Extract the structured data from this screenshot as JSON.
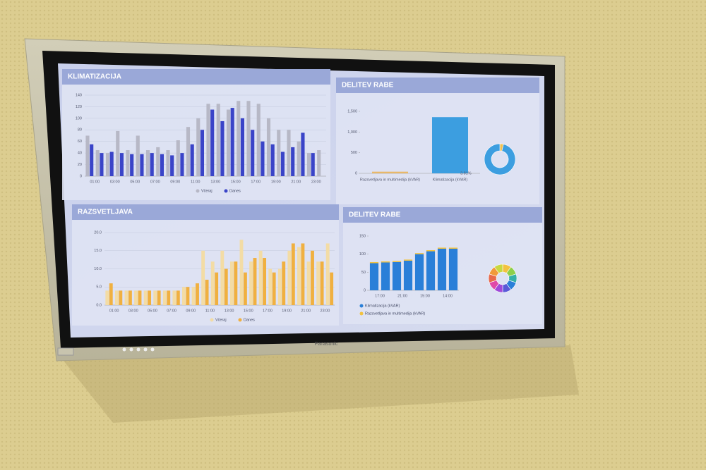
{
  "brand": "Panasonic",
  "chart_data": [
    {
      "type": "bar",
      "title": "KLIMATIZACIJA",
      "categories": [
        "01:00",
        null,
        "03:00",
        null,
        "05:00",
        null,
        "07:00",
        null,
        "09:00",
        null,
        "11:00",
        null,
        "13:00",
        null,
        "15:00",
        null,
        "17:00",
        null,
        "19:00",
        null,
        "21:00",
        null,
        "23:00",
        null
      ],
      "series": [
        {
          "name": "Včeraj",
          "color": "#b7b8c6",
          "values": [
            70,
            45,
            40,
            78,
            45,
            70,
            45,
            50,
            45,
            62,
            85,
            100,
            125,
            125,
            115,
            130,
            130,
            125,
            100,
            80,
            80,
            60,
            40,
            45
          ]
        },
        {
          "name": "Danes",
          "color": "#3a44c8",
          "values": [
            55,
            40,
            42,
            40,
            38,
            38,
            40,
            38,
            36,
            40,
            55,
            80,
            115,
            95,
            118,
            100,
            80,
            60,
            55,
            42,
            50,
            75,
            40,
            null
          ]
        }
      ],
      "ylim": [
        0,
        140
      ],
      "yticks": [
        0,
        20,
        40,
        60,
        80,
        100,
        120,
        140
      ],
      "grid": true
    },
    {
      "type": "bar",
      "title": "DELITEV RABE",
      "categories": [
        "Razsvetljava in multimedija (kVAR)",
        "Klimatizacija (kVAR)"
      ],
      "values": [
        40,
        1360
      ],
      "colors": [
        "#e8b86a",
        "#3c9ee0"
      ],
      "ylim": [
        0,
        1500
      ],
      "yticks": [
        0,
        500,
        {
          "value": 1000,
          "label": "1,000"
        },
        {
          "value": 1500,
          "label": "1,500"
        }
      ],
      "grid": false
    },
    {
      "type": "pie",
      "values": [
        3.81,
        96.19
      ],
      "colors": [
        "#f0c050",
        "#3c9ee0"
      ],
      "value_labels": [
        "3.81%",
        null
      ]
    },
    {
      "type": "bar",
      "title": "RAZSVETLJAVA",
      "categories": [
        "01:00",
        null,
        "03:00",
        null,
        "05:00",
        null,
        "07:00",
        null,
        "09:00",
        null,
        "11:00",
        null,
        "13:00",
        null,
        "15:00",
        null,
        "17:00",
        null,
        "19:00",
        null,
        "21:00",
        null,
        "23:00",
        null
      ],
      "series": [
        {
          "name": "Včeraj",
          "color": "#f3dca5",
          "values": [
            4,
            4,
            4,
            4,
            4,
            4,
            4,
            4,
            5,
            5,
            15,
            12,
            15,
            12,
            18,
            12,
            15,
            10,
            10,
            15,
            16,
            12,
            12,
            17
          ]
        },
        {
          "name": "Danes",
          "color": "#f0b040",
          "values": [
            6,
            4,
            4,
            4,
            4,
            4,
            4,
            4,
            5,
            6,
            7,
            9,
            10,
            12,
            9,
            13,
            13,
            9,
            12,
            17,
            17,
            15,
            12,
            9
          ]
        }
      ],
      "ylim": [
        0,
        20
      ],
      "yticks": [
        {
          "value": 0,
          "label": "0.0"
        },
        {
          "value": 5,
          "label": "5.0"
        },
        {
          "value": 10,
          "label": "10.0"
        },
        {
          "value": 15,
          "label": "15.0"
        },
        {
          "value": 20,
          "label": "20.0"
        }
      ],
      "grid": true
    },
    {
      "type": "stacked_bar",
      "title": "DELITEV RABE",
      "categories": [
        "17:00",
        null,
        "21:00",
        null,
        "15:00",
        null,
        "14:00",
        null
      ],
      "series": [
        {
          "name": "Klimatizacija (kVAR)",
          "color": "#2a7fd8",
          "values": [
            75,
            77,
            78,
            82,
            100,
            108,
            115,
            115
          ]
        },
        {
          "name": "Razsvetljava in multimedija (kVAR)",
          "color": "#f2c240",
          "values": [
            3,
            3,
            3,
            3,
            3,
            3,
            3,
            3
          ]
        }
      ],
      "ylim": [
        0,
        150
      ],
      "yticks": [
        0,
        50,
        100,
        150
      ],
      "grid": false
    },
    {
      "type": "pie",
      "values": [
        10,
        10,
        10,
        10,
        10,
        10,
        10,
        10,
        10,
        10
      ],
      "colors": [
        "#f2c240",
        "#8ed04a",
        "#36b0a8",
        "#2a7fd8",
        "#5a5ad8",
        "#a04ad8",
        "#e04aa8",
        "#e86a4a",
        "#f09a3a",
        "#c8d840"
      ]
    }
  ]
}
